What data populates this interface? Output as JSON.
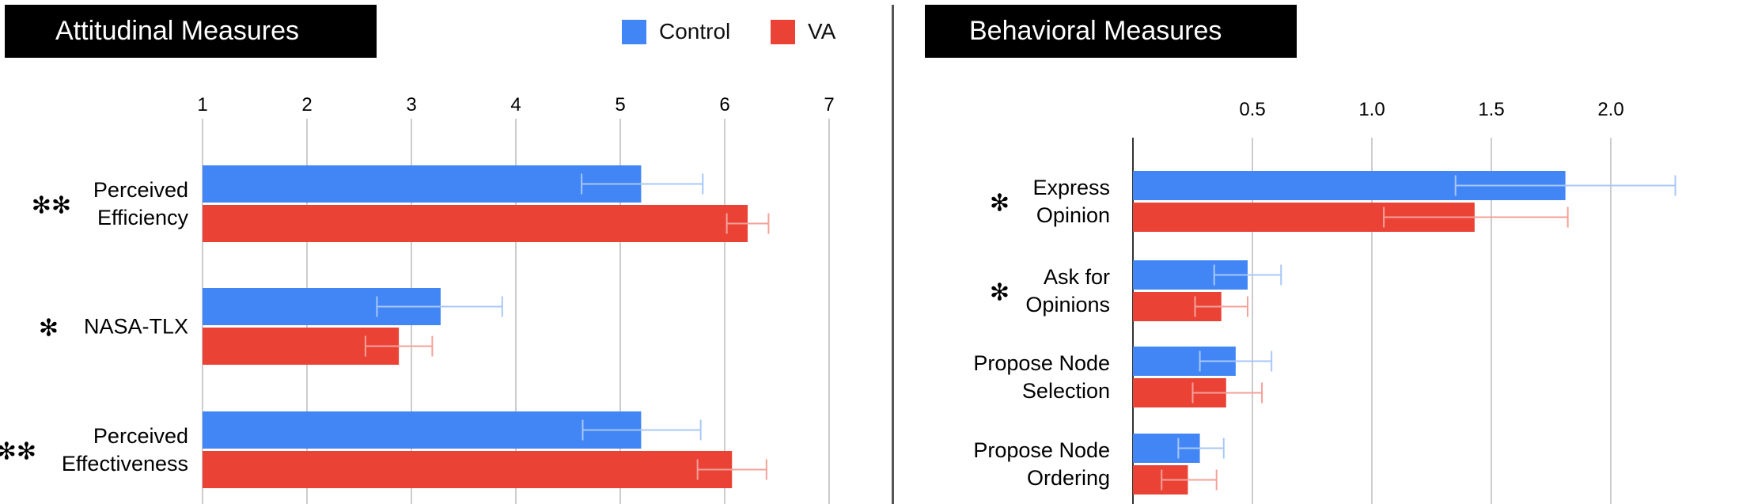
{
  "panels": {
    "attitudinal_title": "Attitudinal Measures",
    "behavioral_title": "Behavioral Measures"
  },
  "legend": [
    {
      "label": "Control",
      "color": "#4285F4"
    },
    {
      "label": "VA",
      "color": "#EA4335"
    }
  ],
  "chart_data": [
    {
      "type": "bar",
      "orientation": "horizontal",
      "title": "Attitudinal Measures",
      "xlim": [
        1,
        7
      ],
      "x_ticks": [
        "1",
        "2",
        "3",
        "4",
        "5",
        "6",
        "7"
      ],
      "grid": true,
      "categories": [
        {
          "label_lines": [
            "Perceived",
            "Efficiency"
          ],
          "significance": "**"
        },
        {
          "label_lines": [
            "NASA-TLX"
          ],
          "significance": "*"
        },
        {
          "label_lines": [
            "Perceived",
            "Effectiveness"
          ],
          "significance": "**"
        }
      ],
      "series": [
        {
          "name": "Control",
          "color": "#4285F4",
          "error_color": "#A8C7FA",
          "values": [
            5.2,
            3.28,
            5.2
          ],
          "error_low": [
            4.63,
            2.67,
            4.64
          ],
          "error_high": [
            5.79,
            3.87,
            5.77
          ]
        },
        {
          "name": "VA",
          "color": "#EA4335",
          "error_color": "#F4A19A",
          "values": [
            6.22,
            2.88,
            6.07
          ],
          "error_low": [
            6.02,
            2.56,
            5.74
          ],
          "error_high": [
            6.42,
            3.2,
            6.4
          ]
        }
      ]
    },
    {
      "type": "bar",
      "orientation": "horizontal",
      "title": "Behavioral Measures",
      "xlim": [
        0,
        2.5
      ],
      "x_ticks": [
        "0.5",
        "1.0",
        "1.5",
        "2.0"
      ],
      "x_tick_values": [
        0.5,
        1.0,
        1.5,
        2.0
      ],
      "grid": true,
      "categories": [
        {
          "label_lines": [
            "Express",
            "Opinion"
          ],
          "significance": "*"
        },
        {
          "label_lines": [
            "Ask for",
            "Opinions"
          ],
          "significance": "*"
        },
        {
          "label_lines": [
            "Propose Node",
            "Selection"
          ],
          "significance": ""
        },
        {
          "label_lines": [
            "Propose Node",
            "Ordering"
          ],
          "significance": ""
        }
      ],
      "series": [
        {
          "name": "Control",
          "color": "#4285F4",
          "error_color": "#A8C7FA",
          "values": [
            1.81,
            0.48,
            0.43,
            0.28
          ],
          "error_low": [
            1.35,
            0.34,
            0.28,
            0.19
          ],
          "error_high": [
            2.27,
            0.62,
            0.58,
            0.38
          ]
        },
        {
          "name": "VA",
          "color": "#EA4335",
          "error_color": "#F4A19A",
          "values": [
            1.43,
            0.37,
            0.39,
            0.23
          ],
          "error_low": [
            1.05,
            0.26,
            0.25,
            0.12
          ],
          "error_high": [
            1.82,
            0.48,
            0.54,
            0.35
          ]
        }
      ]
    }
  ]
}
